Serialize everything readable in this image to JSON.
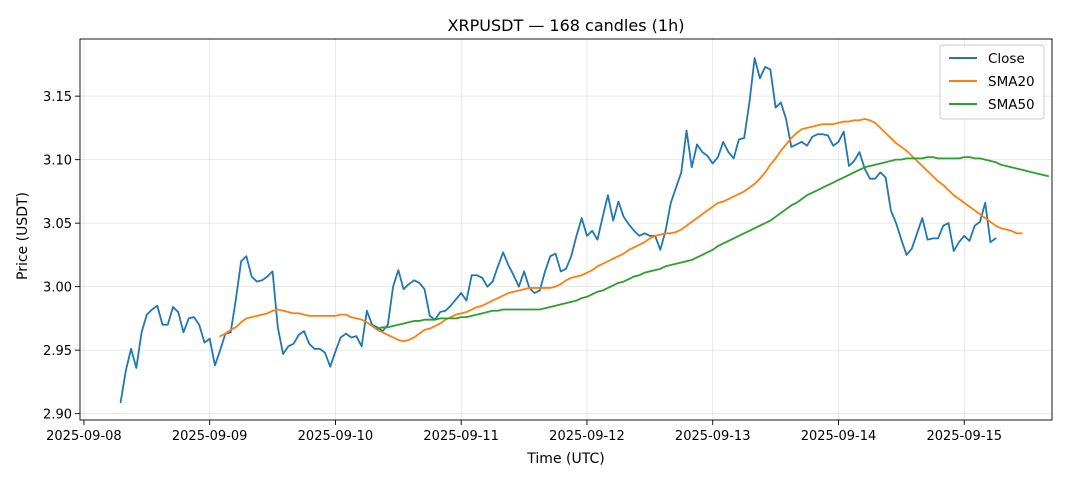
{
  "chart_data": {
    "type": "line",
    "title": "XRPUSDT — 168 candles (1h)",
    "xlabel": "Time (UTC)",
    "ylabel": "Price (USDT)",
    "x_start": "2025-09-08T07:00",
    "x_step_hours": 1,
    "xlim": [
      "2025-09-07T23:15",
      "2025-09-15T16:45"
    ],
    "ylim": [
      2.895,
      3.195
    ],
    "x_ticks": [
      "2025-09-08",
      "2025-09-09",
      "2025-09-10",
      "2025-09-11",
      "2025-09-12",
      "2025-09-13",
      "2025-09-14",
      "2025-09-15"
    ],
    "y_ticks": [
      "2.90",
      "2.95",
      "3.00",
      "3.05",
      "3.10",
      "3.15"
    ],
    "y_tick_values": [
      2.9,
      2.95,
      3.0,
      3.05,
      3.1,
      3.15
    ],
    "grid": true,
    "legend_position": "top-right",
    "series": [
      {
        "name": "Close",
        "color": "#1f77b4",
        "values": [
          2.909,
          2.934,
          2.951,
          2.936,
          2.964,
          2.978,
          2.982,
          2.985,
          2.97,
          2.97,
          2.984,
          2.98,
          2.964,
          2.975,
          2.976,
          2.97,
          2.956,
          2.959,
          2.938,
          2.95,
          2.963,
          2.964,
          2.99,
          3.02,
          3.024,
          3.008,
          3.004,
          3.005,
          3.008,
          3.012,
          2.968,
          2.947,
          2.953,
          2.955,
          2.962,
          2.965,
          2.955,
          2.951,
          2.951,
          2.948,
          2.937,
          2.949,
          2.96,
          2.963,
          2.96,
          2.961,
          2.953,
          2.981,
          2.97,
          2.968,
          2.965,
          2.97,
          3.0,
          3.013,
          2.998,
          3.002,
          3.005,
          3.003,
          2.998,
          2.977,
          2.974,
          2.98,
          2.981,
          2.985,
          2.99,
          2.995,
          2.989,
          3.009,
          3.009,
          3.007,
          3.0,
          3.004,
          3.016,
          3.027,
          3.017,
          3.009,
          3.0,
          3.012,
          2.999,
          2.995,
          2.997,
          3.012,
          3.024,
          3.026,
          3.012,
          3.014,
          3.024,
          3.04,
          3.054,
          3.04,
          3.044,
          3.037,
          3.055,
          3.072,
          3.052,
          3.067,
          3.055,
          3.049,
          3.044,
          3.04,
          3.042,
          3.04,
          3.04,
          3.029,
          3.044,
          3.066,
          3.078,
          3.09,
          3.123,
          3.094,
          3.112,
          3.106,
          3.103,
          3.097,
          3.102,
          3.114,
          3.106,
          3.101,
          3.116,
          3.117,
          3.145,
          3.18,
          3.164,
          3.173,
          3.171,
          3.141,
          3.145,
          3.132,
          3.11,
          3.112,
          3.114,
          3.111,
          3.118,
          3.12,
          3.12,
          3.119,
          3.111,
          3.114,
          3.122,
          3.095,
          3.099,
          3.106,
          3.093,
          3.085,
          3.085,
          3.09,
          3.086,
          3.06,
          3.05,
          3.037,
          3.025,
          3.03,
          3.042,
          3.054,
          3.037,
          3.038,
          3.038,
          3.048,
          3.05,
          3.028,
          3.035,
          3.04,
          3.036,
          3.048,
          3.051,
          3.066,
          3.035,
          3.038
        ]
      },
      {
        "name": "SMA20",
        "color": "#ff7f0e",
        "start_index": 19,
        "values": [
          2.961,
          2.963,
          2.966,
          2.968,
          2.972,
          2.975,
          2.976,
          2.977,
          2.978,
          2.979,
          2.981,
          2.982,
          2.981,
          2.98,
          2.979,
          2.979,
          2.978,
          2.977,
          2.977,
          2.977,
          2.977,
          2.977,
          2.977,
          2.978,
          2.978,
          2.976,
          2.975,
          2.974,
          2.972,
          2.969,
          2.966,
          2.964,
          2.962,
          2.96,
          2.958,
          2.957,
          2.958,
          2.96,
          2.963,
          2.966,
          2.967,
          2.969,
          2.971,
          2.974,
          2.976,
          2.978,
          2.979,
          2.98,
          2.982,
          2.984,
          2.985,
          2.987,
          2.989,
          2.991,
          2.993,
          2.995,
          2.996,
          2.997,
          2.998,
          2.999,
          2.999,
          2.999,
          2.999,
          2.999,
          3.0,
          3.002,
          3.005,
          3.007,
          3.008,
          3.009,
          3.011,
          3.013,
          3.016,
          3.018,
          3.02,
          3.022,
          3.024,
          3.026,
          3.029,
          3.031,
          3.033,
          3.035,
          3.038,
          3.04,
          3.041,
          3.042,
          3.042,
          3.043,
          3.045,
          3.048,
          3.051,
          3.054,
          3.057,
          3.06,
          3.063,
          3.066,
          3.067,
          3.069,
          3.071,
          3.073,
          3.075,
          3.078,
          3.081,
          3.085,
          3.09,
          3.096,
          3.101,
          3.107,
          3.112,
          3.117,
          3.121,
          3.124,
          3.125,
          3.126,
          3.127,
          3.128,
          3.128,
          3.128,
          3.129,
          3.13,
          3.13,
          3.131,
          3.131,
          3.132,
          3.131,
          3.129,
          3.125,
          3.121,
          3.117,
          3.113,
          3.11,
          3.107,
          3.103,
          3.099,
          3.095,
          3.091,
          3.087,
          3.083,
          3.08,
          3.076,
          3.072,
          3.069,
          3.066,
          3.063,
          3.06,
          3.057,
          3.054,
          3.051,
          3.048,
          3.046,
          3.045,
          3.044,
          3.042,
          3.042
        ]
      },
      {
        "name": "SMA50",
        "color": "#2ca02c",
        "start_index": 49,
        "values": [
          2.967,
          2.968,
          2.968,
          2.969,
          2.97,
          2.971,
          2.972,
          2.973,
          2.973,
          2.974,
          2.974,
          2.974,
          2.975,
          2.975,
          2.975,
          2.975,
          2.976,
          2.976,
          2.977,
          2.978,
          2.979,
          2.98,
          2.981,
          2.981,
          2.982,
          2.982,
          2.982,
          2.982,
          2.982,
          2.982,
          2.982,
          2.982,
          2.983,
          2.984,
          2.985,
          2.986,
          2.987,
          2.988,
          2.989,
          2.991,
          2.992,
          2.994,
          2.996,
          2.997,
          2.999,
          3.001,
          3.003,
          3.004,
          3.006,
          3.008,
          3.009,
          3.011,
          3.012,
          3.013,
          3.014,
          3.016,
          3.017,
          3.018,
          3.019,
          3.02,
          3.021,
          3.023,
          3.025,
          3.027,
          3.029,
          3.032,
          3.034,
          3.036,
          3.038,
          3.04,
          3.042,
          3.044,
          3.046,
          3.048,
          3.05,
          3.052,
          3.055,
          3.058,
          3.061,
          3.064,
          3.066,
          3.069,
          3.072,
          3.074,
          3.076,
          3.078,
          3.08,
          3.082,
          3.084,
          3.086,
          3.088,
          3.09,
          3.092,
          3.094,
          3.095,
          3.096,
          3.097,
          3.098,
          3.099,
          3.1,
          3.1,
          3.101,
          3.101,
          3.101,
          3.101,
          3.102,
          3.102,
          3.101,
          3.101,
          3.101,
          3.101,
          3.101,
          3.102,
          3.102,
          3.101,
          3.101,
          3.1,
          3.099,
          3.098,
          3.096,
          3.095,
          3.094,
          3.093,
          3.092,
          3.091,
          3.09,
          3.089,
          3.088,
          3.087
        ]
      }
    ]
  }
}
